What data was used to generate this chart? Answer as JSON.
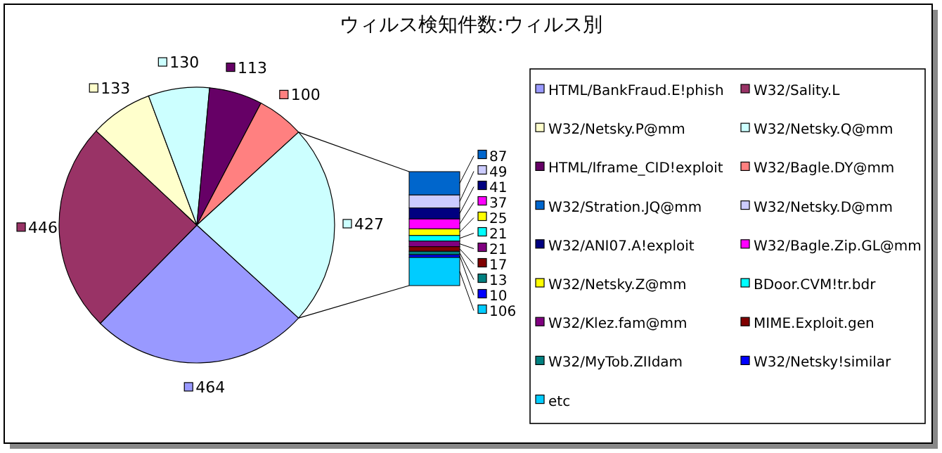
{
  "chart_data": [
    {
      "type": "pie",
      "title": "ウィルス検知件数:ウィルス別",
      "categories": [
        "HTML/BankFraud.E!phish",
        "W32/Sality.L",
        "W32/Netsky.P@mm",
        "W32/Netsky.Q@mm",
        "HTML/Iframe_CID!exploit",
        "W32/Bagle.DY@mm",
        null
      ],
      "values": [
        464,
        446,
        133,
        130,
        113,
        100,
        427
      ],
      "colors": [
        "#9999ff",
        "#993366",
        "#ffffcc",
        "#ccffff",
        "#660066",
        "#ff8080",
        "#ccffff"
      ],
      "data_labels": true,
      "legend": "right"
    },
    {
      "type": "bar",
      "stacked": true,
      "categories": [
        null
      ],
      "data_labels": true,
      "legend": "right",
      "series": [
        {
          "name": "etc",
          "color": "#00ccff",
          "values": [
            106
          ]
        },
        {
          "name": "W32/Netsky!similar",
          "color": "#0000ff",
          "values": [
            10
          ]
        },
        {
          "name": "W32/MyTob.ZIIdam",
          "color": "#008080",
          "values": [
            13
          ]
        },
        {
          "name": "MIME.Exploit.gen",
          "color": "#800000",
          "values": [
            17
          ]
        },
        {
          "name": "W32/Klez.fam@mm",
          "color": "#800080",
          "values": [
            21
          ]
        },
        {
          "name": "BDoor.CVM!tr.bdr",
          "color": "#00ffff",
          "values": [
            21
          ]
        },
        {
          "name": "W32/Netsky.Z@mm",
          "color": "#ffff00",
          "values": [
            25
          ]
        },
        {
          "name": "W32/Bagle.Zip.GL@mm",
          "color": "#ff00ff",
          "values": [
            37
          ]
        },
        {
          "name": "W32/ANI07.A!exploit",
          "color": "#000080",
          "values": [
            41
          ]
        },
        {
          "name": "W32/Netsky.D@mm",
          "color": "#ccccff",
          "values": [
            49
          ]
        },
        {
          "name": "W32/Stration.JQ@mm",
          "color": "#0066cc",
          "values": [
            87
          ]
        }
      ]
    }
  ]
}
